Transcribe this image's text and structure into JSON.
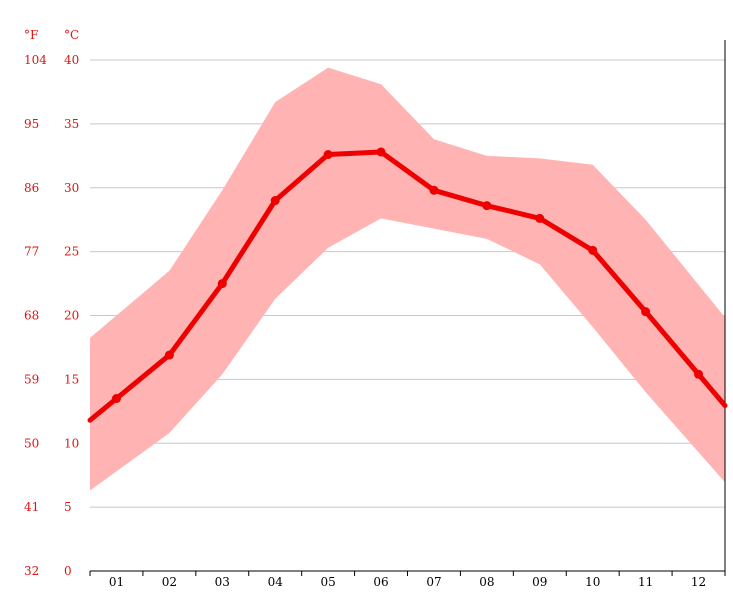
{
  "chart_data": {
    "type": "line",
    "unit_f": "°F",
    "unit_c": "°C",
    "y_ticks_c": [
      "0",
      "5",
      "10",
      "15",
      "20",
      "25",
      "30",
      "35",
      "40"
    ],
    "y_ticks_f": [
      "32",
      "41",
      "50",
      "59",
      "68",
      "77",
      "86",
      "95",
      "104"
    ],
    "ylim": [
      0,
      40
    ],
    "grid": true,
    "categories": [
      "01",
      "02",
      "03",
      "04",
      "05",
      "06",
      "07",
      "08",
      "09",
      "10",
      "11",
      "12"
    ],
    "series": [
      {
        "values": [
          13.5,
          16.9,
          22.5,
          29.0,
          32.6,
          32.8,
          29.8,
          28.6,
          27.6,
          25.1,
          20.3,
          15.4
        ]
      }
    ],
    "band_max": [
      20.0,
      23.5,
      29.8,
      36.7,
      39.4,
      38.1,
      33.8,
      32.5,
      32.3,
      31.8,
      27.5,
      22.4
    ],
    "band_min": [
      7.8,
      10.8,
      15.4,
      21.3,
      25.3,
      27.6,
      26.8,
      26.0,
      24.0,
      19.1,
      14.0,
      9.3
    ],
    "colors": {
      "line": "#ee0000",
      "band": "#ffb3b3",
      "axis_text": "#e01414",
      "grid": "#c8c8c8"
    }
  }
}
